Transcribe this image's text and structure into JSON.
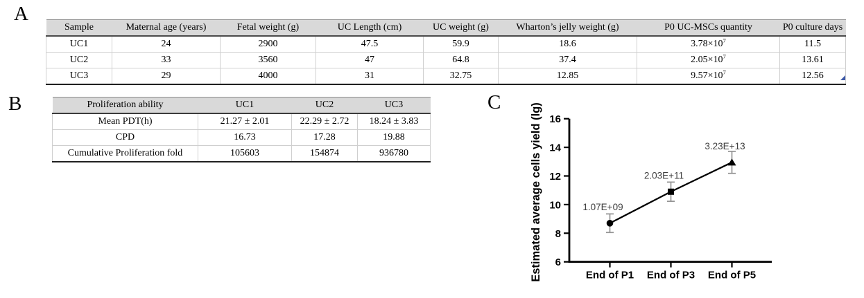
{
  "figure": {
    "title": "UC-MSCs donor characteristics and proliferation figure"
  },
  "panel_a": {
    "label": "A",
    "table": {
      "headers": [
        "Sample",
        "Maternal age (years)",
        "Fetal weight (g)",
        "UC Length (cm)",
        "UC weight (g)",
        "Wharton’s jelly weight (g)",
        "P0 UC-MSCs quantity",
        "P0 culture days"
      ],
      "rows": [
        [
          "UC1",
          "24",
          "2900",
          "47.5",
          "59.9",
          "18.6",
          "3.78×10^7",
          "11.5"
        ],
        [
          "UC2",
          "33",
          "3560",
          "47",
          "64.8",
          "37.4",
          "2.05×10^7",
          "13.61"
        ],
        [
          "UC3",
          "29",
          "4000",
          "31",
          "32.75",
          "12.85",
          "9.57×10^7",
          "12.56"
        ]
      ]
    }
  },
  "panel_b": {
    "label": "B",
    "table": {
      "headers": [
        "Proliferation ability",
        "UC1",
        "UC2",
        "UC3"
      ],
      "rows": [
        [
          "Mean PDT(h)",
          "21.27 ± 2.01",
          "22.29 ± 2.72",
          "18.24 ± 3.83"
        ],
        [
          "CPD",
          "16.73",
          "17.28",
          "19.88"
        ],
        [
          "Cumulative Proliferation fold",
          "105603",
          "154874",
          "936780"
        ]
      ]
    }
  },
  "panel_c": {
    "label": "C"
  },
  "chart_data": {
    "type": "line",
    "categories": [
      "End of P1",
      "End of P3",
      "End of P5"
    ],
    "values": [
      8.7,
      10.9,
      12.95
    ],
    "errors": [
      0.65,
      0.67,
      0.77
    ],
    "point_labels": [
      "1.07E+09",
      "2.03E+11",
      "3.23E+13"
    ],
    "markers": [
      "circle",
      "square",
      "triangle"
    ],
    "title": "",
    "xlabel": "",
    "ylabel": "Estimated average cells yield (lg)",
    "yticks": [
      16,
      14,
      12,
      10,
      8,
      6
    ],
    "ylim": [
      6,
      16
    ],
    "grid": false,
    "legend": false,
    "line_color": "#000000",
    "marker_color": "#000000",
    "error_bar_color": "#949494",
    "annotation_color": "#3d3d3d"
  },
  "colors": {
    "table_header_bg": "#d9d9d9",
    "table_border_dark": "#1f1f1f",
    "table_border_light": "#cfcfcf",
    "resize_handle_blue": "#3d59a8"
  }
}
